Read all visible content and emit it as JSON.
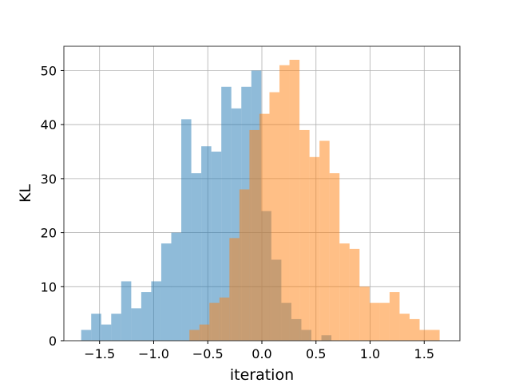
{
  "chart_data": {
    "type": "bar",
    "xlabel": "iteration",
    "ylabel": "KL",
    "xlim": [
      -1.83,
      1.83
    ],
    "ylim": [
      0,
      54.5
    ],
    "grid": true,
    "x_ticks": [
      -1.5,
      -1.0,
      -0.5,
      0.0,
      0.5,
      1.0,
      1.5
    ],
    "x_tick_labels": [
      "−1.5",
      "−1.0",
      "−0.5",
      "0.0",
      "0.5",
      "1.0",
      "1.5"
    ],
    "y_ticks": [
      0,
      10,
      20,
      30,
      40,
      50
    ],
    "y_tick_labels": [
      "0",
      "10",
      "20",
      "30",
      "40",
      "50"
    ],
    "series": [
      {
        "color": "#1f77b4",
        "opacity": 0.5,
        "bin_start": -1.67,
        "bin_width": 0.0925,
        "counts": [
          2,
          5,
          3,
          5,
          11,
          6,
          9,
          11,
          18,
          20,
          41,
          31,
          36,
          35,
          47,
          43,
          47,
          50,
          24,
          15,
          7,
          4,
          2,
          0,
          1
        ]
      },
      {
        "color": "#ff7f0e",
        "opacity": 0.5,
        "bin_start": -0.67,
        "bin_width": 0.0925,
        "counts": [
          2,
          3,
          7,
          8,
          19,
          28,
          39,
          42,
          46,
          51,
          52,
          39,
          34,
          37,
          31,
          18,
          17,
          10,
          7,
          7,
          9,
          5,
          4,
          2,
          2
        ]
      }
    ]
  }
}
